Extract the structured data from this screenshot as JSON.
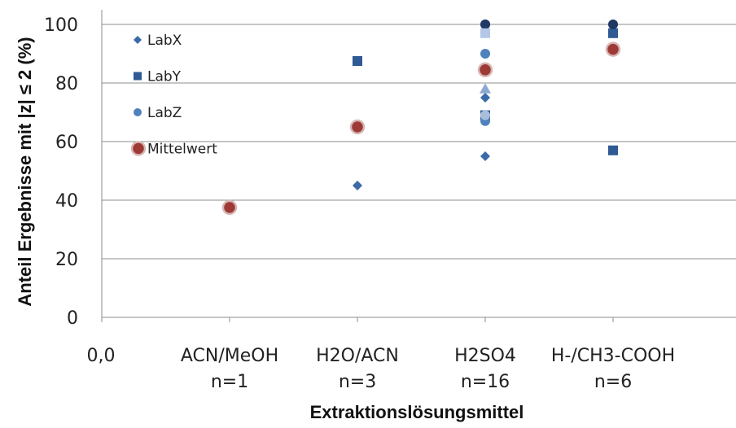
{
  "chart_data": {
    "type": "scatter",
    "xlabel": "Extraktionslösungsmittel",
    "ylabel": "Anteil Ergebnisse mit  |z| ≤ 2 (%)",
    "origin_label": "0,0",
    "ylim": [
      0,
      100
    ],
    "yticks": [
      "0",
      "20",
      "40",
      "60",
      "80",
      "100"
    ],
    "grid": "horizontal",
    "legend_position": "top-left",
    "categories": [
      {
        "line1": "ACN/MeOH",
        "line2": "n=1"
      },
      {
        "line1": "H2O/ACN",
        "line2": "n=3"
      },
      {
        "line1": "H2SO4",
        "line2": "n=16"
      },
      {
        "line1": "H-/CH3-COOH",
        "line2": "n=6"
      }
    ],
    "series": [
      {
        "name": "LabX",
        "marker": "diamond",
        "color": "#3b6aa8",
        "points": [
          [
            2,
            45
          ],
          [
            3,
            55
          ],
          [
            3,
            75
          ],
          [
            4,
            100
          ]
        ]
      },
      {
        "name": "LabY",
        "marker": "square",
        "color": "#2f5a93",
        "points": [
          [
            2,
            87.5
          ],
          [
            3,
            69
          ],
          [
            4,
            57
          ],
          [
            4,
            97
          ]
        ]
      },
      {
        "name": "LabZ",
        "marker": "circle",
        "color": "#4f81bd",
        "points": [
          [
            3,
            67
          ],
          [
            3,
            90
          ],
          [
            3,
            100
          ]
        ]
      },
      {
        "name": "",
        "marker": "circle",
        "color": "#1f3864",
        "points": [
          [
            3,
            100
          ],
          [
            4,
            100
          ]
        ]
      },
      {
        "name": "",
        "marker": "triangle",
        "color": "#8ea9d0",
        "points": [
          [
            3,
            78
          ]
        ]
      },
      {
        "name": "",
        "marker": "square",
        "color": "#b4c7e7",
        "points": [
          [
            3,
            97
          ]
        ]
      },
      {
        "name": "",
        "marker": "circle",
        "color": "#a9bedc",
        "points": [
          [
            3,
            69
          ]
        ]
      },
      {
        "name": "Mittelwert",
        "marker": "bigcircle",
        "color": "#9e3a36",
        "points": [
          [
            1,
            37.5
          ],
          [
            2,
            65
          ],
          [
            3,
            84.5
          ],
          [
            4,
            91.5
          ]
        ]
      }
    ]
  }
}
